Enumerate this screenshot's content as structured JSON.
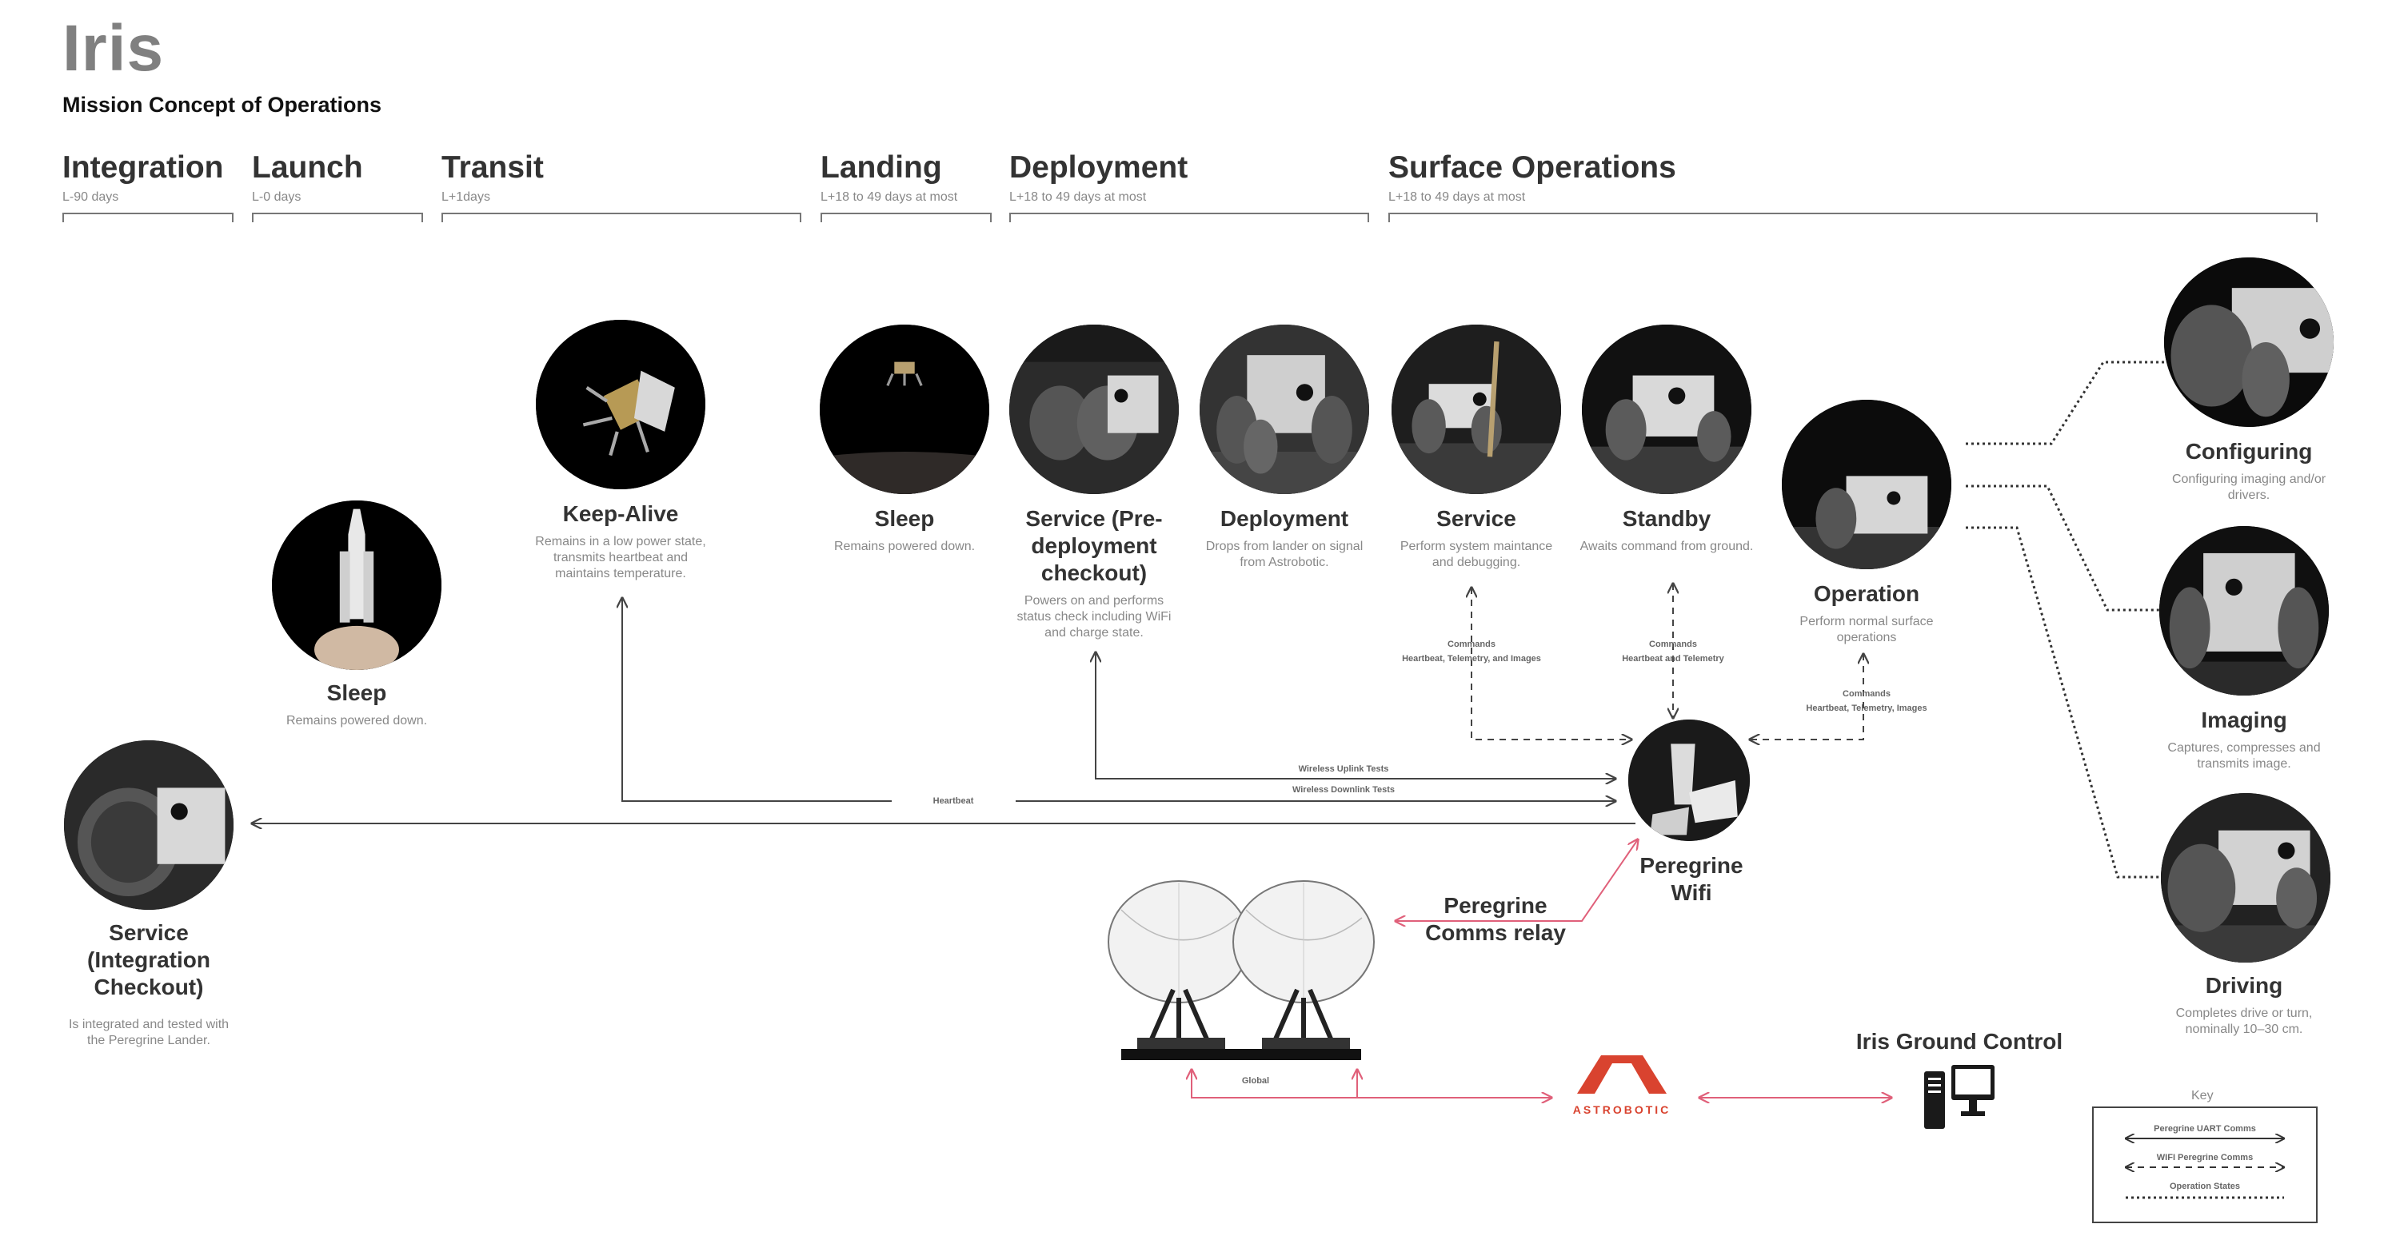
{
  "header": {
    "title": "Iris",
    "subtitle": "Mission Concept of Operations"
  },
  "phases": [
    {
      "name": "Integration",
      "days": "L-90 days"
    },
    {
      "name": "Launch",
      "days": "L-0 days"
    },
    {
      "name": "Transit",
      "days": "L+1days"
    },
    {
      "name": "Landing",
      "days": "L+18 to 49 days at most"
    },
    {
      "name": "Deployment",
      "days": "L+18 to 49 days at most"
    },
    {
      "name": "Surface Operations",
      "days": "L+18 to 49 days at most"
    }
  ],
  "nodes": {
    "service_integration": {
      "title": "Service (Integration Checkout)",
      "desc": "Is integrated and tested with the Peregrine Lander."
    },
    "sleep_launch": {
      "title": "Sleep",
      "desc": "Remains powered down."
    },
    "keep_alive": {
      "title": "Keep-Alive",
      "desc": "Remains in a low power state, transmits heartbeat and maintains temperature."
    },
    "sleep_landing": {
      "title": "Sleep",
      "desc": "Remains powered down."
    },
    "service_predeploy": {
      "title": "Service (Pre-deployment checkout)",
      "desc": "Powers on and performs status check including WiFi and charge state."
    },
    "deployment": {
      "title": "Deployment",
      "desc": "Drops from lander on signal from Astrobotic."
    },
    "service_surface": {
      "title": "Service",
      "desc": "Perform system maintance and debugging."
    },
    "standby": {
      "title": "Standby",
      "desc": "Awaits command from ground."
    },
    "operation": {
      "title": "Operation",
      "desc": "Perform normal surface operations"
    },
    "configuring": {
      "title": "Configuring",
      "desc": "Configuring imaging and/or drivers."
    },
    "imaging": {
      "title": "Imaging",
      "desc": "Captures, compresses and transmits image."
    },
    "driving": {
      "title": "Driving",
      "desc": "Completes drive or turn, nominally 10–30 cm."
    },
    "peregrine_wifi": {
      "title": "Peregrine Wifi"
    },
    "comms_relay": {
      "title": "Peregrine Comms relay"
    },
    "ground_control": {
      "title": "Iris Ground Control"
    }
  },
  "link_labels": {
    "commands": "Commands",
    "service_link": "Heartbeat, Telemetry, and Images",
    "standby_link": "Heartbeat and Telemetry",
    "operation_link": "Heartbeat, Telemetry, Images",
    "uplink": "Wireless Uplink Tests",
    "downlink": "Wireless Downlink Tests",
    "heartbeat": "Heartbeat",
    "global": "Global"
  },
  "logo": {
    "text": "ASTROBOTIC",
    "color": "#d9432f"
  },
  "key": {
    "title": "Key",
    "uart": "Peregrine UART Comms",
    "wifi": "WIFI Peregrine Comms",
    "states": "Operation States"
  },
  "colors": {
    "relay_arrow": "#e0607a",
    "line": "#444444",
    "accent": "#d9432f"
  }
}
